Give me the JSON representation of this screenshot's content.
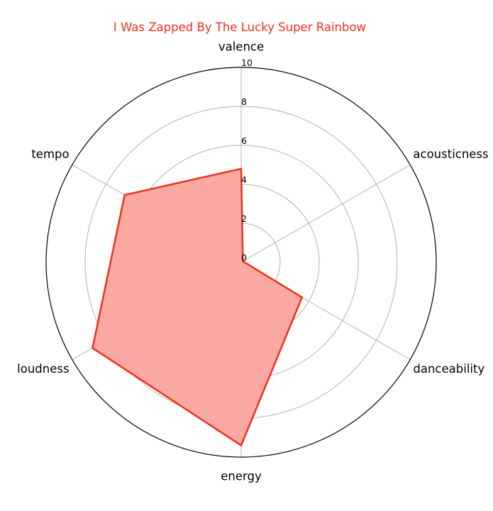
{
  "chart_data": {
    "type": "radar",
    "title": "I Was Zapped By The Lucky Super Rainbow",
    "axes": [
      "valence",
      "acousticness",
      "danceability",
      "energy",
      "loudness",
      "tempo"
    ],
    "values": [
      4.8,
      0.1,
      3.6,
      9.4,
      8.8,
      6.9
    ],
    "rlim": [
      0,
      10
    ],
    "ticks": [
      "0",
      "2",
      "4",
      "6",
      "8",
      "10"
    ],
    "grid": true,
    "colors": {
      "line": "#f0301e",
      "fill": "#f9a9a2",
      "title": "#f0301e",
      "grid": "#b0b0b0",
      "frame": "#000000"
    }
  }
}
